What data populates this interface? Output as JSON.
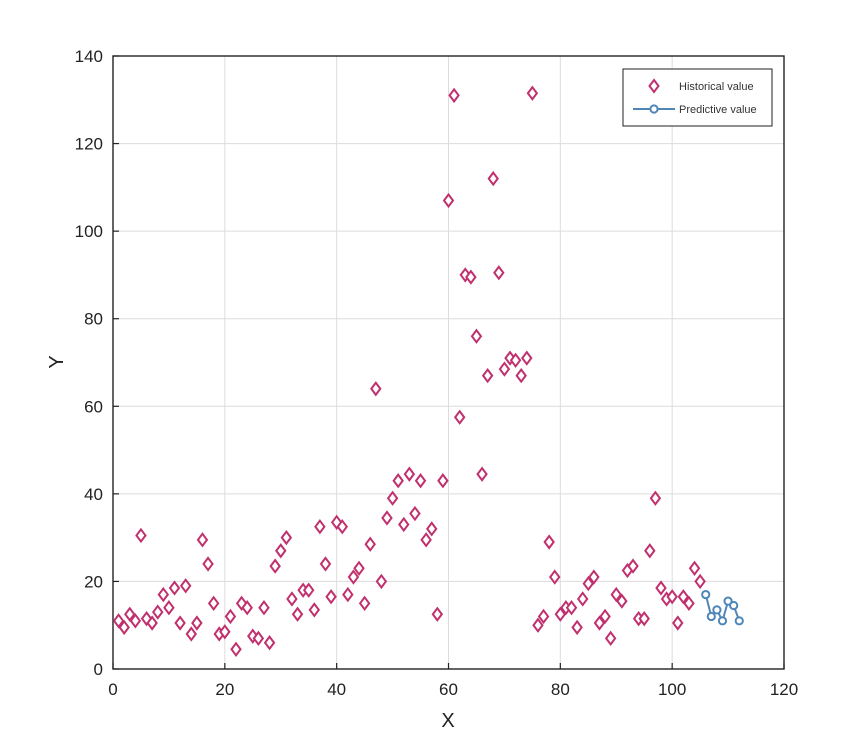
{
  "chart_data": {
    "type": "scatter",
    "xlabel": "X",
    "ylabel": "Y",
    "xlim": [
      0,
      120
    ],
    "ylim": [
      0,
      140
    ],
    "xticks": [
      0,
      20,
      40,
      60,
      80,
      100,
      120
    ],
    "yticks": [
      0,
      20,
      40,
      60,
      80,
      100,
      120,
      140
    ],
    "grid": true,
    "legend_position": "top-right",
    "series": [
      {
        "name": "Historical value",
        "marker": "diamond",
        "line": false,
        "color": "#c0306e",
        "points": [
          [
            1,
            11
          ],
          [
            2,
            9.5
          ],
          [
            3,
            12.5
          ],
          [
            4,
            11
          ],
          [
            5,
            30.5
          ],
          [
            6,
            11.5
          ],
          [
            7,
            10.5
          ],
          [
            8,
            13
          ],
          [
            9,
            17
          ],
          [
            10,
            14
          ],
          [
            11,
            18.5
          ],
          [
            12,
            10.5
          ],
          [
            13,
            19
          ],
          [
            14,
            8
          ],
          [
            15,
            10.5
          ],
          [
            16,
            29.5
          ],
          [
            17,
            24
          ],
          [
            18,
            15
          ],
          [
            19,
            8
          ],
          [
            20,
            8.5
          ],
          [
            21,
            12
          ],
          [
            22,
            4.5
          ],
          [
            23,
            15
          ],
          [
            24,
            14
          ],
          [
            25,
            7.5
          ],
          [
            26,
            7
          ],
          [
            27,
            14
          ],
          [
            28,
            6
          ],
          [
            29,
            23.5
          ],
          [
            30,
            27
          ],
          [
            31,
            30
          ],
          [
            32,
            16
          ],
          [
            33,
            12.5
          ],
          [
            34,
            18
          ],
          [
            35,
            18
          ],
          [
            36,
            13.5
          ],
          [
            37,
            32.5
          ],
          [
            38,
            24
          ],
          [
            39,
            16.5
          ],
          [
            40,
            33.5
          ],
          [
            41,
            32.5
          ],
          [
            42,
            17
          ],
          [
            43,
            21
          ],
          [
            44,
            23
          ],
          [
            45,
            15
          ],
          [
            46,
            28.5
          ],
          [
            47,
            64
          ],
          [
            48,
            20
          ],
          [
            49,
            34.5
          ],
          [
            50,
            39
          ],
          [
            51,
            43
          ],
          [
            52,
            33
          ],
          [
            53,
            44.5
          ],
          [
            54,
            35.5
          ],
          [
            55,
            43
          ],
          [
            56,
            29.5
          ],
          [
            57,
            32
          ],
          [
            58,
            12.5
          ],
          [
            59,
            43
          ],
          [
            60,
            107
          ],
          [
            61,
            131
          ],
          [
            62,
            57.5
          ],
          [
            63,
            90
          ],
          [
            64,
            89.5
          ],
          [
            65,
            76
          ],
          [
            66,
            44.5
          ],
          [
            67,
            67
          ],
          [
            68,
            112
          ],
          [
            69,
            90.5
          ],
          [
            70,
            68.5
          ],
          [
            71,
            71
          ],
          [
            72,
            70.5
          ],
          [
            73,
            67
          ],
          [
            74,
            71
          ],
          [
            75,
            131.5
          ],
          [
            76,
            10
          ],
          [
            77,
            12
          ],
          [
            78,
            29
          ],
          [
            79,
            21
          ],
          [
            80,
            12.5
          ],
          [
            81,
            14
          ],
          [
            82,
            14
          ],
          [
            83,
            9.5
          ],
          [
            84,
            16
          ],
          [
            85,
            19.5
          ],
          [
            86,
            21
          ],
          [
            87,
            10.5
          ],
          [
            88,
            12
          ],
          [
            89,
            7
          ],
          [
            90,
            17
          ],
          [
            91,
            15.5
          ],
          [
            92,
            22.5
          ],
          [
            93,
            23.5
          ],
          [
            94,
            11.5
          ],
          [
            95,
            11.5
          ],
          [
            96,
            27
          ],
          [
            97,
            39
          ],
          [
            98,
            18.5
          ],
          [
            99,
            16
          ],
          [
            100,
            16.5
          ],
          [
            101,
            10.5
          ],
          [
            102,
            16.5
          ],
          [
            103,
            15
          ],
          [
            104,
            23
          ],
          [
            105,
            20
          ]
        ]
      },
      {
        "name": "Predictive value",
        "marker": "circle",
        "line": true,
        "color": "#4f86b8",
        "points": [
          [
            106,
            17
          ],
          [
            107,
            12
          ],
          [
            108,
            13.5
          ],
          [
            109,
            11
          ],
          [
            110,
            15.5
          ],
          [
            111,
            14.5
          ],
          [
            112,
            11
          ]
        ]
      }
    ]
  }
}
